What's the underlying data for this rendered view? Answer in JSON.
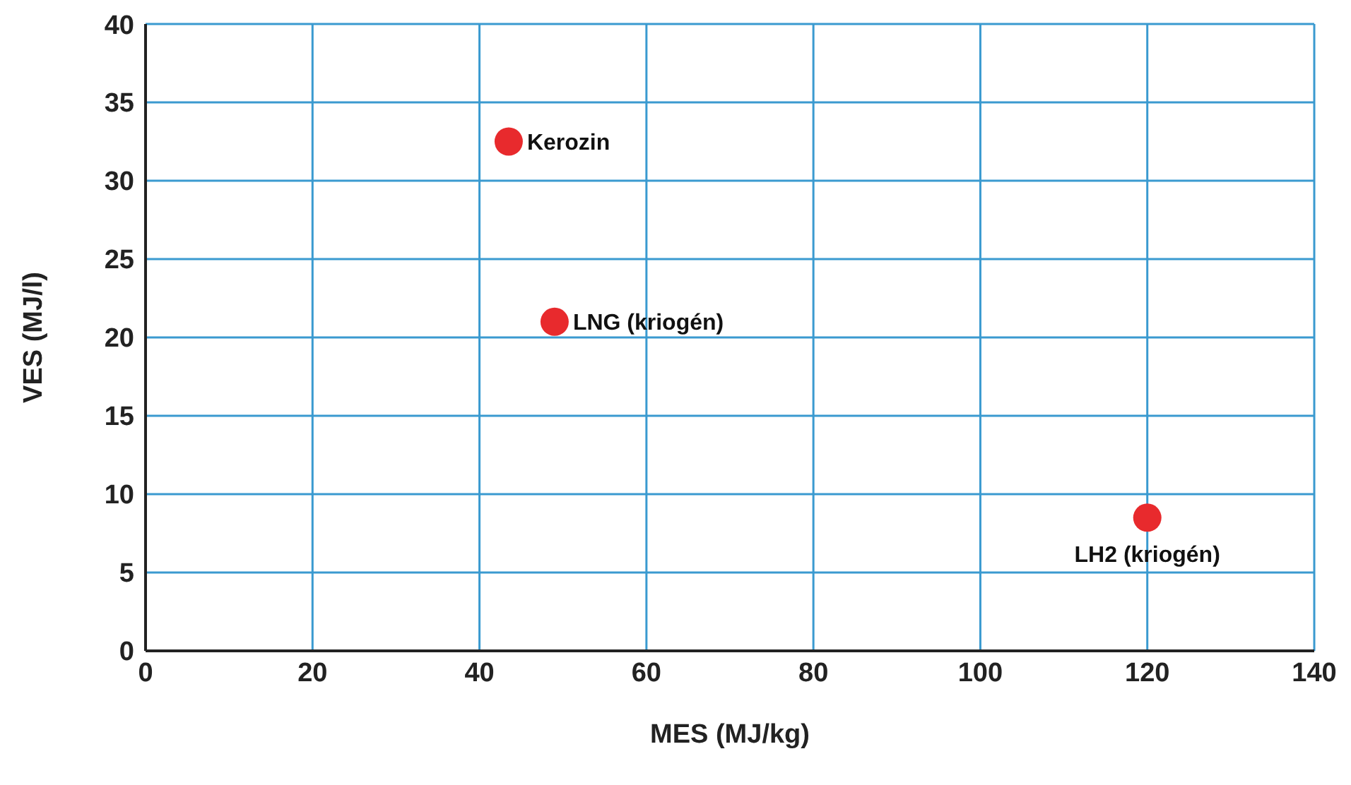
{
  "chart_data": {
    "type": "scatter",
    "xlabel": "MES (MJ/kg)",
    "ylabel": "VES (MJ/l)",
    "x": [
      43.5,
      49,
      120
    ],
    "series": [
      {
        "color": "#e82a2d",
        "values": [
          32.5,
          21,
          8.5
        ]
      }
    ],
    "xlim": [
      0,
      140
    ],
    "xticks": [
      0,
      20,
      40,
      60,
      80,
      100,
      120,
      140
    ],
    "ylim": [
      0,
      40
    ],
    "yticks": [
      0,
      5,
      10,
      15,
      20,
      25,
      30,
      35,
      40
    ],
    "grid": true,
    "legend": false,
    "marker": "circle",
    "annotations": [
      {
        "text": "Kerozin",
        "x": 43.5,
        "y": 32.5
      },
      {
        "text": "LNG (kriogén)",
        "x": 49,
        "y": 21
      },
      {
        "text": "LH2 (kriogén)",
        "x": 120,
        "y": 8.5
      }
    ]
  }
}
